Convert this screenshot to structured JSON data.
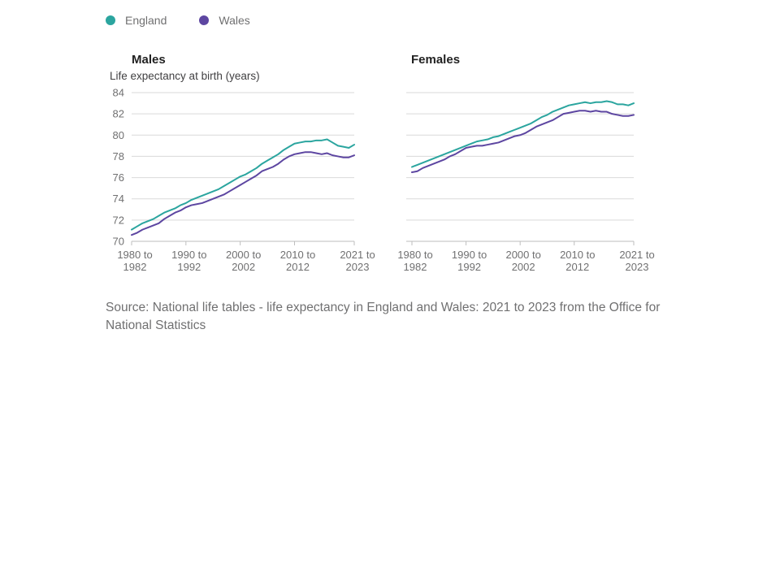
{
  "legend": [
    {
      "name": "England",
      "color": "#2ba59f"
    },
    {
      "name": "Wales",
      "color": "#5d46a1"
    }
  ],
  "source": "Source: National life tables - life expectancy in England and Wales: 2021 to 2023 from the Office for National Statistics",
  "chart_data": [
    {
      "type": "line",
      "title": "Males",
      "ylabel": "Life expectancy at birth (years)",
      "xlabel": "",
      "ylim": [
        70,
        84
      ],
      "yticks": [
        70,
        72,
        74,
        76,
        78,
        80,
        82,
        84
      ],
      "xticks": [
        {
          "index": 0,
          "label": [
            "1980 to",
            "1982"
          ]
        },
        {
          "index": 10,
          "label": [
            "1990 to",
            "1992"
          ]
        },
        {
          "index": 20,
          "label": [
            "2000 to",
            "2002"
          ]
        },
        {
          "index": 30,
          "label": [
            "2010 to",
            "2012"
          ]
        },
        {
          "index": 41,
          "label": [
            "2021 to",
            "2023"
          ]
        }
      ],
      "grid": true,
      "x": [
        "1980 to 1982",
        "1981 to 1983",
        "1982 to 1984",
        "1983 to 1985",
        "1984 to 1986",
        "1985 to 1987",
        "1986 to 1988",
        "1987 to 1989",
        "1988 to 1990",
        "1989 to 1991",
        "1990 to 1992",
        "1991 to 1993",
        "1992 to 1994",
        "1993 to 1995",
        "1994 to 1996",
        "1995 to 1997",
        "1996 to 1998",
        "1997 to 1999",
        "1998 to 2000",
        "1999 to 2001",
        "2000 to 2002",
        "2001 to 2003",
        "2002 to 2004",
        "2003 to 2005",
        "2004 to 2006",
        "2005 to 2007",
        "2006 to 2008",
        "2007 to 2009",
        "2008 to 2010",
        "2009 to 2011",
        "2010 to 2012",
        "2011 to 2013",
        "2012 to 2014",
        "2013 to 2015",
        "2014 to 2016",
        "2015 to 2017",
        "2016 to 2018",
        "2017 to 2019",
        "2018 to 2020",
        "2019 to 2021",
        "2020 to 2022",
        "2021 to 2023"
      ],
      "series": [
        {
          "name": "England",
          "color": "#2ba59f",
          "values": [
            71.1,
            71.4,
            71.7,
            71.9,
            72.1,
            72.4,
            72.7,
            72.9,
            73.1,
            73.4,
            73.6,
            73.9,
            74.1,
            74.3,
            74.5,
            74.7,
            74.9,
            75.2,
            75.5,
            75.8,
            76.1,
            76.3,
            76.6,
            76.9,
            77.3,
            77.6,
            77.9,
            78.2,
            78.6,
            78.9,
            79.2,
            79.3,
            79.4,
            79.4,
            79.5,
            79.5,
            79.6,
            79.3,
            79.0,
            78.9,
            78.8,
            79.1
          ]
        },
        {
          "name": "Wales",
          "color": "#5d46a1",
          "values": [
            70.6,
            70.8,
            71.1,
            71.3,
            71.5,
            71.7,
            72.1,
            72.4,
            72.7,
            72.9,
            73.2,
            73.4,
            73.5,
            73.6,
            73.8,
            74.0,
            74.2,
            74.4,
            74.7,
            75.0,
            75.3,
            75.6,
            75.9,
            76.2,
            76.6,
            76.8,
            77.0,
            77.3,
            77.7,
            78.0,
            78.2,
            78.3,
            78.4,
            78.4,
            78.3,
            78.2,
            78.3,
            78.1,
            78.0,
            77.9,
            77.9,
            78.1
          ]
        }
      ]
    },
    {
      "type": "line",
      "title": "Females",
      "ylabel": "",
      "xlabel": "",
      "ylim": [
        70,
        84
      ],
      "yticks": [
        70,
        72,
        74,
        76,
        78,
        80,
        82,
        84
      ],
      "xticks": [
        {
          "index": 0,
          "label": [
            "1980 to",
            "1982"
          ]
        },
        {
          "index": 10,
          "label": [
            "1990 to",
            "1992"
          ]
        },
        {
          "index": 20,
          "label": [
            "2000 to",
            "2002"
          ]
        },
        {
          "index": 30,
          "label": [
            "2010 to",
            "2012"
          ]
        },
        {
          "index": 41,
          "label": [
            "2021 to",
            "2023"
          ]
        }
      ],
      "grid": true,
      "x": [
        "1980 to 1982",
        "1981 to 1983",
        "1982 to 1984",
        "1983 to 1985",
        "1984 to 1986",
        "1985 to 1987",
        "1986 to 1988",
        "1987 to 1989",
        "1988 to 1990",
        "1989 to 1991",
        "1990 to 1992",
        "1991 to 1993",
        "1992 to 1994",
        "1993 to 1995",
        "1994 to 1996",
        "1995 to 1997",
        "1996 to 1998",
        "1997 to 1999",
        "1998 to 2000",
        "1999 to 2001",
        "2000 to 2002",
        "2001 to 2003",
        "2002 to 2004",
        "2003 to 2005",
        "2004 to 2006",
        "2005 to 2007",
        "2006 to 2008",
        "2007 to 2009",
        "2008 to 2010",
        "2009 to 2011",
        "2010 to 2012",
        "2011 to 2013",
        "2012 to 2014",
        "2013 to 2015",
        "2014 to 2016",
        "2015 to 2017",
        "2016 to 2018",
        "2017 to 2019",
        "2018 to 2020",
        "2019 to 2021",
        "2020 to 2022",
        "2021 to 2023"
      ],
      "series": [
        {
          "name": "England",
          "color": "#2ba59f",
          "values": [
            77.0,
            77.2,
            77.4,
            77.6,
            77.8,
            78.0,
            78.2,
            78.4,
            78.6,
            78.8,
            79.0,
            79.2,
            79.4,
            79.5,
            79.6,
            79.8,
            79.9,
            80.1,
            80.3,
            80.5,
            80.7,
            80.9,
            81.1,
            81.4,
            81.7,
            81.9,
            82.2,
            82.4,
            82.6,
            82.8,
            82.9,
            83.0,
            83.1,
            83.0,
            83.1,
            83.1,
            83.2,
            83.1,
            82.9,
            82.9,
            82.8,
            83.0
          ]
        },
        {
          "name": "Wales",
          "color": "#5d46a1",
          "values": [
            76.5,
            76.6,
            76.9,
            77.1,
            77.3,
            77.5,
            77.7,
            78.0,
            78.2,
            78.5,
            78.8,
            78.9,
            79.0,
            79.0,
            79.1,
            79.2,
            79.3,
            79.5,
            79.7,
            79.9,
            80.0,
            80.2,
            80.5,
            80.8,
            81.0,
            81.2,
            81.4,
            81.7,
            82.0,
            82.1,
            82.2,
            82.3,
            82.3,
            82.2,
            82.3,
            82.2,
            82.2,
            82.0,
            81.9,
            81.8,
            81.8,
            81.9
          ]
        }
      ]
    }
  ]
}
